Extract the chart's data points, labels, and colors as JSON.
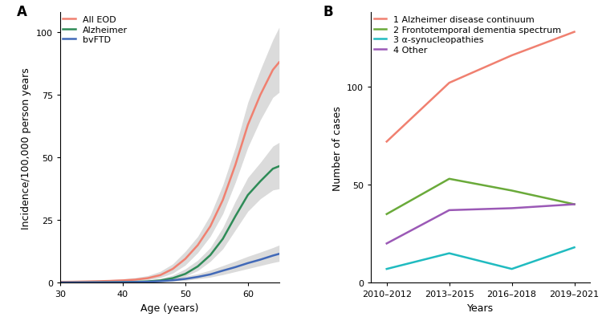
{
  "panel_A": {
    "title": "A",
    "xlabel": "Age (years)",
    "ylabel": "Incidence/100,000 person years",
    "xlim": [
      30,
      65
    ],
    "ylim": [
      0,
      108
    ],
    "yticks": [
      0,
      25,
      50,
      75,
      100
    ],
    "xticks": [
      30,
      40,
      50,
      60
    ],
    "lines": [
      {
        "label": "All EOD",
        "color": "#f08070",
        "x": [
          30,
          32,
          34,
          36,
          38,
          40,
          42,
          44,
          46,
          48,
          50,
          52,
          54,
          56,
          58,
          60,
          62,
          64,
          65
        ],
        "y": [
          0.3,
          0.35,
          0.45,
          0.55,
          0.7,
          0.9,
          1.2,
          1.8,
          3.0,
          5.5,
          9.5,
          15.0,
          22.5,
          33.0,
          47.0,
          63.0,
          75.0,
          85.0,
          88.0
        ],
        "ci_low": [
          0.1,
          0.15,
          0.2,
          0.25,
          0.35,
          0.5,
          0.7,
          1.1,
          2.0,
          3.8,
          7.0,
          12.0,
          18.5,
          27.5,
          40.0,
          54.0,
          65.0,
          74.0,
          76.0
        ],
        "ci_high": [
          0.6,
          0.7,
          0.85,
          1.0,
          1.2,
          1.5,
          2.0,
          2.8,
          4.5,
          7.5,
          12.5,
          18.5,
          27.0,
          39.0,
          54.0,
          72.0,
          85.0,
          97.0,
          102.0
        ]
      },
      {
        "label": "Alzheimer",
        "color": "#2e8b57",
        "x": [
          30,
          32,
          34,
          36,
          38,
          40,
          42,
          44,
          46,
          48,
          50,
          52,
          54,
          56,
          58,
          60,
          62,
          64,
          65
        ],
        "y": [
          0.05,
          0.07,
          0.09,
          0.12,
          0.16,
          0.22,
          0.32,
          0.5,
          0.9,
          1.8,
          3.5,
          6.5,
          11.0,
          17.5,
          26.5,
          35.0,
          40.5,
          45.5,
          46.5
        ],
        "ci_low": [
          0.01,
          0.02,
          0.03,
          0.04,
          0.06,
          0.09,
          0.14,
          0.24,
          0.5,
          1.1,
          2.5,
          4.8,
          8.5,
          13.5,
          21.0,
          28.5,
          33.5,
          37.0,
          37.5
        ],
        "ci_high": [
          0.15,
          0.18,
          0.22,
          0.28,
          0.36,
          0.48,
          0.65,
          0.95,
          1.6,
          3.0,
          5.5,
          9.0,
          14.0,
          22.0,
          32.5,
          42.0,
          48.0,
          54.5,
          56.0
        ]
      },
      {
        "label": "bvFTD",
        "color": "#4169b8",
        "x": [
          30,
          32,
          34,
          36,
          38,
          40,
          42,
          44,
          46,
          48,
          50,
          52,
          54,
          56,
          58,
          60,
          62,
          64,
          65
        ],
        "y": [
          0.04,
          0.05,
          0.07,
          0.09,
          0.12,
          0.17,
          0.24,
          0.35,
          0.6,
          0.95,
          1.5,
          2.3,
          3.3,
          4.8,
          6.2,
          7.8,
          9.2,
          10.8,
          11.5
        ],
        "ci_low": [
          0.01,
          0.01,
          0.02,
          0.02,
          0.04,
          0.06,
          0.09,
          0.14,
          0.28,
          0.5,
          0.9,
          1.5,
          2.2,
          3.2,
          4.4,
          5.6,
          6.8,
          8.0,
          8.5
        ],
        "ci_high": [
          0.12,
          0.14,
          0.17,
          0.22,
          0.28,
          0.37,
          0.5,
          0.7,
          1.1,
          1.75,
          2.55,
          3.55,
          5.0,
          6.8,
          8.6,
          10.5,
          12.2,
          14.0,
          15.0
        ]
      }
    ]
  },
  "panel_B": {
    "title": "B",
    "xlabel": "Years",
    "ylabel": "Number of cases",
    "ylim": [
      0,
      138
    ],
    "yticks": [
      0,
      50,
      100
    ],
    "x_labels": [
      "2010–2012",
      "2013–2015",
      "2016–2018",
      "2019–2021"
    ],
    "lines": [
      {
        "label": "1 Alzheimer disease continuum",
        "color": "#f08070",
        "y": [
          72,
          102,
          116,
          128
        ]
      },
      {
        "label": "2 Frontotemporal dementia spectrum",
        "color": "#6aaa3a",
        "y": [
          35,
          53,
          47,
          40
        ]
      },
      {
        "label": "3 α-synucleopathies",
        "color": "#20bbc0",
        "y": [
          7,
          15,
          7,
          18
        ]
      },
      {
        "label": "4 Other",
        "color": "#9b59b6",
        "y": [
          20,
          37,
          38,
          40
        ]
      }
    ]
  },
  "background_color": "#ffffff",
  "ci_color": "#999999",
  "ci_alpha": 0.35,
  "line_width": 1.8
}
